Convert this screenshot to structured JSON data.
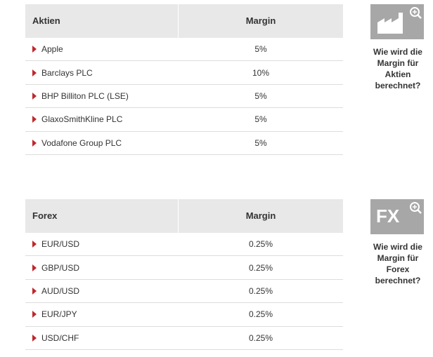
{
  "tables": [
    {
      "header": [
        "Aktien",
        "Margin"
      ],
      "rows": [
        [
          "Apple",
          "5%"
        ],
        [
          "Barclays PLC",
          "10%"
        ],
        [
          "BHP Billiton PLC (LSE)",
          "5%"
        ],
        [
          "GlaxoSmithKline PLC",
          "5%"
        ],
        [
          "Vodafone Group PLC",
          "5%"
        ]
      ],
      "info": {
        "icon_label": null,
        "caption": "Wie wird die Margin für Aktien berechnet?"
      }
    },
    {
      "header": [
        "Forex",
        "Margin"
      ],
      "rows": [
        [
          "EUR/USD",
          "0.25%"
        ],
        [
          "GBP/USD",
          "0.25%"
        ],
        [
          "AUD/USD",
          "0.25%"
        ],
        [
          "EUR/JPY",
          "0.25%"
        ],
        [
          "USD/CHF",
          "0.25%"
        ]
      ],
      "info": {
        "icon_label": "FX",
        "caption": "Wie wird die Margin für Forex berechnet?"
      }
    }
  ]
}
